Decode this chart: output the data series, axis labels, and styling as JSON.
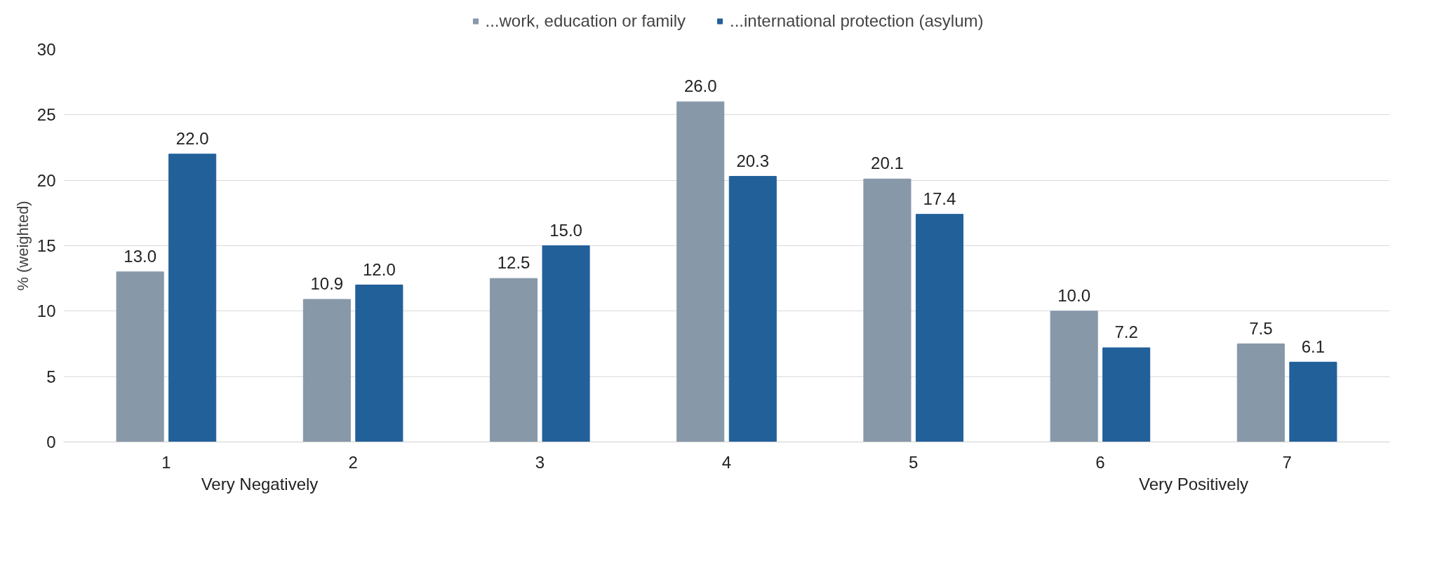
{
  "chart_data": {
    "type": "bar",
    "ylabel": "% (weighted)",
    "categories": [
      "1",
      "2",
      "3",
      "4",
      "5",
      "6",
      "7"
    ],
    "series": [
      {
        "name": "...work, education or family",
        "color": "#8798a9",
        "values": [
          13.0,
          10.9,
          12.5,
          26.0,
          20.1,
          10.0,
          7.5
        ],
        "value_labels": [
          "13.0",
          "10.9",
          "12.5",
          "26.0",
          "20.1",
          "10.0",
          "7.5"
        ]
      },
      {
        "name": "...international protection (asylum)",
        "color": "#22609a",
        "values": [
          22.0,
          12.0,
          15.0,
          20.3,
          17.4,
          7.2,
          6.1
        ],
        "value_labels": [
          "22.0",
          "12.0",
          "15.0",
          "20.3",
          "17.4",
          "7.2",
          "6.1"
        ]
      }
    ],
    "ylim": [
      0,
      30
    ],
    "yticks": [
      0,
      5,
      10,
      15,
      20,
      25,
      30
    ],
    "grid": "y",
    "legend": "top",
    "annotations": [
      "Very Negatively",
      "Very Positively"
    ]
  }
}
